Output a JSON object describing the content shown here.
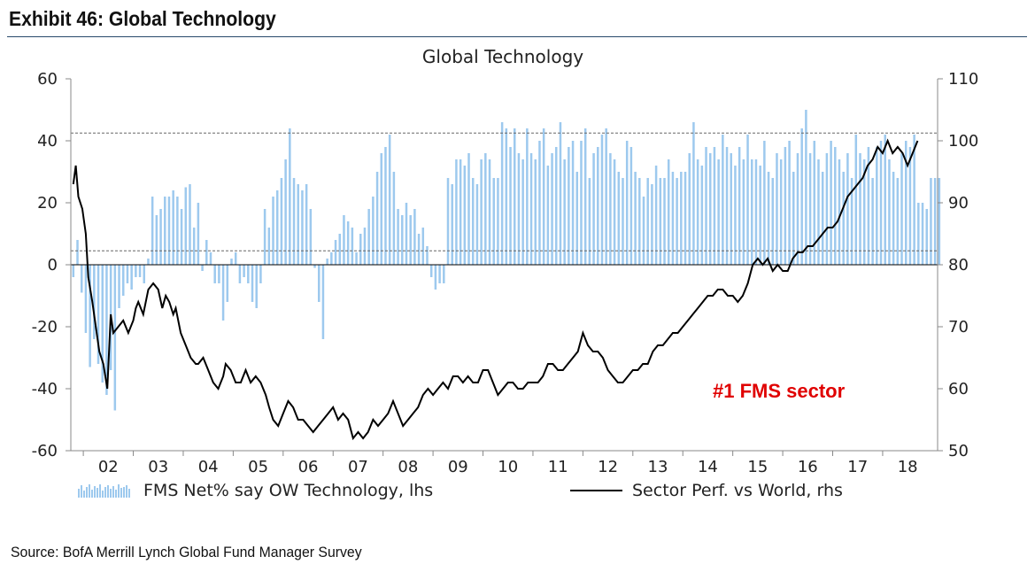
{
  "exhibit": {
    "title": "Exhibit 46: Global Technology",
    "source": "Source: BofA Merrill Lynch Global Fund Manager Survey"
  },
  "colors": {
    "bar": "#9dc9ee",
    "line": "#000000",
    "annotation": "#e00000",
    "rule": "#27496b"
  },
  "chart_data": {
    "type": "bar",
    "title": "Global Technology",
    "annotation": "#1 FMS sector",
    "x_tick_labels": [
      "02",
      "03",
      "04",
      "05",
      "06",
      "07",
      "08",
      "09",
      "10",
      "11",
      "12",
      "13",
      "14",
      "15",
      "16",
      "17",
      "18"
    ],
    "y_left": {
      "min": -60,
      "max": 60,
      "ticks": [
        60,
        40,
        20,
        0,
        -20,
        -40,
        -60
      ]
    },
    "y_right": {
      "min": 50,
      "max": 110,
      "ticks": [
        110,
        100,
        90,
        80,
        70,
        60,
        50
      ]
    },
    "reference_lines_left": [
      42.5,
      4.5
    ],
    "x_range": [
      2001.75,
      2019.1
    ],
    "grid": false,
    "legend_position": "bottom",
    "series": [
      {
        "name": "FMS Net% say OW Technology,  lhs",
        "type": "bar",
        "axis": "left",
        "start": 2001.8,
        "step": 0.08333,
        "values": [
          -4,
          8,
          -9,
          -22,
          -33,
          -24,
          -32,
          -38,
          -42,
          -34,
          -47,
          -14,
          -10,
          -6,
          -8,
          -4,
          -4,
          -6,
          2,
          22,
          16,
          18,
          22,
          22,
          24,
          22,
          18,
          25,
          26,
          12,
          20,
          -2,
          8,
          4,
          -6,
          -6,
          -18,
          -12,
          2,
          4,
          -6,
          -4,
          -6,
          -12,
          -14,
          -6,
          18,
          12,
          22,
          24,
          28,
          34,
          44,
          28,
          26,
          24,
          26,
          18,
          -1,
          -12,
          -24,
          2,
          4,
          8,
          10,
          16,
          14,
          12,
          4,
          10,
          12,
          18,
          22,
          30,
          36,
          38,
          42,
          30,
          18,
          16,
          20,
          16,
          18,
          10,
          12,
          6,
          -4,
          -8,
          -6,
          -6,
          28,
          26,
          34,
          34,
          32,
          36,
          28,
          26,
          34,
          36,
          34,
          28,
          28,
          46,
          44,
          38,
          44,
          36,
          34,
          44,
          36,
          34,
          40,
          44,
          32,
          36,
          38,
          46,
          34,
          38,
          40,
          30,
          40,
          44,
          28,
          36,
          38,
          42,
          44,
          36,
          34,
          30,
          28,
          40,
          38,
          30,
          28,
          22,
          28,
          26,
          32,
          28,
          28,
          34,
          30,
          28,
          30,
          30,
          36,
          46,
          34,
          32,
          38,
          36,
          38,
          34,
          42,
          38,
          36,
          32,
          38,
          34,
          42,
          34,
          34,
          32,
          40,
          30,
          28,
          36,
          34,
          38,
          40,
          30,
          36,
          44,
          50,
          36,
          40,
          34,
          30,
          36,
          40,
          38,
          34,
          30,
          36,
          28,
          42,
          36,
          34,
          38,
          28,
          38,
          40,
          42,
          34,
          30,
          28,
          36,
          40,
          38,
          42,
          20,
          20,
          18,
          28,
          28,
          28
        ]
      },
      {
        "name": "Sector Perf. vs World, rhs",
        "type": "line",
        "axis": "right",
        "points": [
          [
            2001.8,
            93
          ],
          [
            2001.85,
            96
          ],
          [
            2001.9,
            91
          ],
          [
            2001.98,
            89
          ],
          [
            2002.05,
            85
          ],
          [
            2002.1,
            78
          ],
          [
            2002.18,
            74
          ],
          [
            2002.25,
            70
          ],
          [
            2002.32,
            66
          ],
          [
            2002.4,
            64
          ],
          [
            2002.48,
            60
          ],
          [
            2002.55,
            72
          ],
          [
            2002.6,
            69
          ],
          [
            2002.7,
            70
          ],
          [
            2002.8,
            71
          ],
          [
            2002.9,
            69
          ],
          [
            2003.0,
            71
          ],
          [
            2003.05,
            73
          ],
          [
            2003.1,
            74
          ],
          [
            2003.2,
            72
          ],
          [
            2003.3,
            76
          ],
          [
            2003.4,
            77
          ],
          [
            2003.5,
            76
          ],
          [
            2003.58,
            73
          ],
          [
            2003.65,
            75
          ],
          [
            2003.72,
            74
          ],
          [
            2003.8,
            72
          ],
          [
            2003.85,
            73
          ],
          [
            2003.95,
            69
          ],
          [
            2004.05,
            67
          ],
          [
            2004.15,
            65
          ],
          [
            2004.25,
            64
          ],
          [
            2004.3,
            64
          ],
          [
            2004.4,
            65
          ],
          [
            2004.5,
            63
          ],
          [
            2004.6,
            61
          ],
          [
            2004.7,
            60
          ],
          [
            2004.8,
            62
          ],
          [
            2004.85,
            64
          ],
          [
            2004.95,
            63
          ],
          [
            2005.05,
            61
          ],
          [
            2005.15,
            61
          ],
          [
            2005.25,
            63
          ],
          [
            2005.35,
            61
          ],
          [
            2005.45,
            62
          ],
          [
            2005.55,
            61
          ],
          [
            2005.65,
            59
          ],
          [
            2005.72,
            57
          ],
          [
            2005.8,
            55
          ],
          [
            2005.9,
            54
          ],
          [
            2006.0,
            56
          ],
          [
            2006.1,
            58
          ],
          [
            2006.2,
            57
          ],
          [
            2006.3,
            55
          ],
          [
            2006.4,
            55
          ],
          [
            2006.5,
            54
          ],
          [
            2006.6,
            53
          ],
          [
            2006.7,
            54
          ],
          [
            2006.8,
            55
          ],
          [
            2006.9,
            56
          ],
          [
            2007.0,
            57
          ],
          [
            2007.1,
            55
          ],
          [
            2007.2,
            56
          ],
          [
            2007.3,
            55
          ],
          [
            2007.4,
            52
          ],
          [
            2007.5,
            53
          ],
          [
            2007.6,
            52
          ],
          [
            2007.7,
            53
          ],
          [
            2007.8,
            55
          ],
          [
            2007.9,
            54
          ],
          [
            2008.0,
            55
          ],
          [
            2008.1,
            56
          ],
          [
            2008.2,
            58
          ],
          [
            2008.3,
            56
          ],
          [
            2008.4,
            54
          ],
          [
            2008.5,
            55
          ],
          [
            2008.6,
            56
          ],
          [
            2008.7,
            57
          ],
          [
            2008.8,
            59
          ],
          [
            2008.9,
            60
          ],
          [
            2009.0,
            59
          ],
          [
            2009.1,
            60
          ],
          [
            2009.2,
            61
          ],
          [
            2009.3,
            60
          ],
          [
            2009.4,
            62
          ],
          [
            2009.5,
            62
          ],
          [
            2009.6,
            61
          ],
          [
            2009.7,
            62
          ],
          [
            2009.8,
            61
          ],
          [
            2009.9,
            61
          ],
          [
            2010.0,
            63
          ],
          [
            2010.1,
            63
          ],
          [
            2010.2,
            61
          ],
          [
            2010.3,
            59
          ],
          [
            2010.4,
            60
          ],
          [
            2010.5,
            61
          ],
          [
            2010.6,
            61
          ],
          [
            2010.7,
            60
          ],
          [
            2010.8,
            60
          ],
          [
            2010.9,
            61
          ],
          [
            2011.0,
            61
          ],
          [
            2011.1,
            61
          ],
          [
            2011.2,
            62
          ],
          [
            2011.3,
            64
          ],
          [
            2011.4,
            64
          ],
          [
            2011.5,
            63
          ],
          [
            2011.6,
            63
          ],
          [
            2011.7,
            64
          ],
          [
            2011.8,
            65
          ],
          [
            2011.9,
            66
          ],
          [
            2012.0,
            69
          ],
          [
            2012.1,
            67
          ],
          [
            2012.2,
            66
          ],
          [
            2012.3,
            66
          ],
          [
            2012.4,
            65
          ],
          [
            2012.5,
            63
          ],
          [
            2012.6,
            62
          ],
          [
            2012.7,
            61
          ],
          [
            2012.8,
            61
          ],
          [
            2012.9,
            62
          ],
          [
            2013.0,
            63
          ],
          [
            2013.1,
            63
          ],
          [
            2013.2,
            64
          ],
          [
            2013.3,
            64
          ],
          [
            2013.4,
            66
          ],
          [
            2013.5,
            67
          ],
          [
            2013.6,
            67
          ],
          [
            2013.7,
            68
          ],
          [
            2013.8,
            69
          ],
          [
            2013.9,
            69
          ],
          [
            2014.0,
            70
          ],
          [
            2014.1,
            71
          ],
          [
            2014.2,
            72
          ],
          [
            2014.3,
            73
          ],
          [
            2014.4,
            74
          ],
          [
            2014.5,
            75
          ],
          [
            2014.6,
            75
          ],
          [
            2014.7,
            76
          ],
          [
            2014.8,
            76
          ],
          [
            2014.9,
            75
          ],
          [
            2015.0,
            75
          ],
          [
            2015.1,
            74
          ],
          [
            2015.2,
            75
          ],
          [
            2015.3,
            77
          ],
          [
            2015.4,
            80
          ],
          [
            2015.5,
            81
          ],
          [
            2015.6,
            80
          ],
          [
            2015.7,
            81
          ],
          [
            2015.8,
            79
          ],
          [
            2015.9,
            80
          ],
          [
            2016.0,
            79
          ],
          [
            2016.1,
            79
          ],
          [
            2016.2,
            81
          ],
          [
            2016.3,
            82
          ],
          [
            2016.4,
            82
          ],
          [
            2016.5,
            83
          ],
          [
            2016.6,
            83
          ],
          [
            2016.7,
            84
          ],
          [
            2016.8,
            85
          ],
          [
            2016.9,
            86
          ],
          [
            2017.0,
            86
          ],
          [
            2017.1,
            87
          ],
          [
            2017.2,
            89
          ],
          [
            2017.3,
            91
          ],
          [
            2017.4,
            92
          ],
          [
            2017.5,
            93
          ],
          [
            2017.6,
            94
          ],
          [
            2017.7,
            96
          ],
          [
            2017.8,
            97
          ],
          [
            2017.9,
            99
          ],
          [
            2018.0,
            98
          ],
          [
            2018.1,
            100
          ],
          [
            2018.2,
            98
          ],
          [
            2018.3,
            99
          ],
          [
            2018.4,
            98
          ],
          [
            2018.5,
            96
          ],
          [
            2018.6,
            98
          ],
          [
            2018.7,
            100
          ]
        ]
      }
    ]
  }
}
